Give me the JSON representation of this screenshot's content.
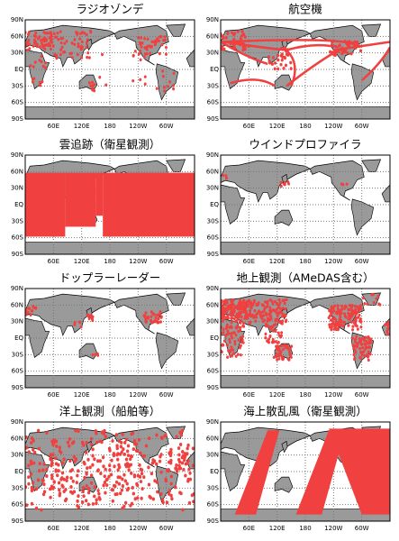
{
  "panels": [
    {
      "title": "ラジオゾンデ"
    },
    {
      "title": "航空機"
    },
    {
      "title": "雲追跡（衛星観測）"
    },
    {
      "title": "ウインドプロファイラ"
    },
    {
      "title": "ドップラーレーダー"
    },
    {
      "title": "地上観測（AMeDAS含む）"
    },
    {
      "title": "洋上観測（船舶等）"
    },
    {
      "title": "海上散乱風（衛星観測）"
    }
  ],
  "lat_labels": [
    "90N",
    "60N",
    "30N",
    "EQ",
    "30S",
    "60S",
    "90S"
  ],
  "lon_labels": [
    "60E",
    "120E",
    "180",
    "120W",
    "60W"
  ]
}
